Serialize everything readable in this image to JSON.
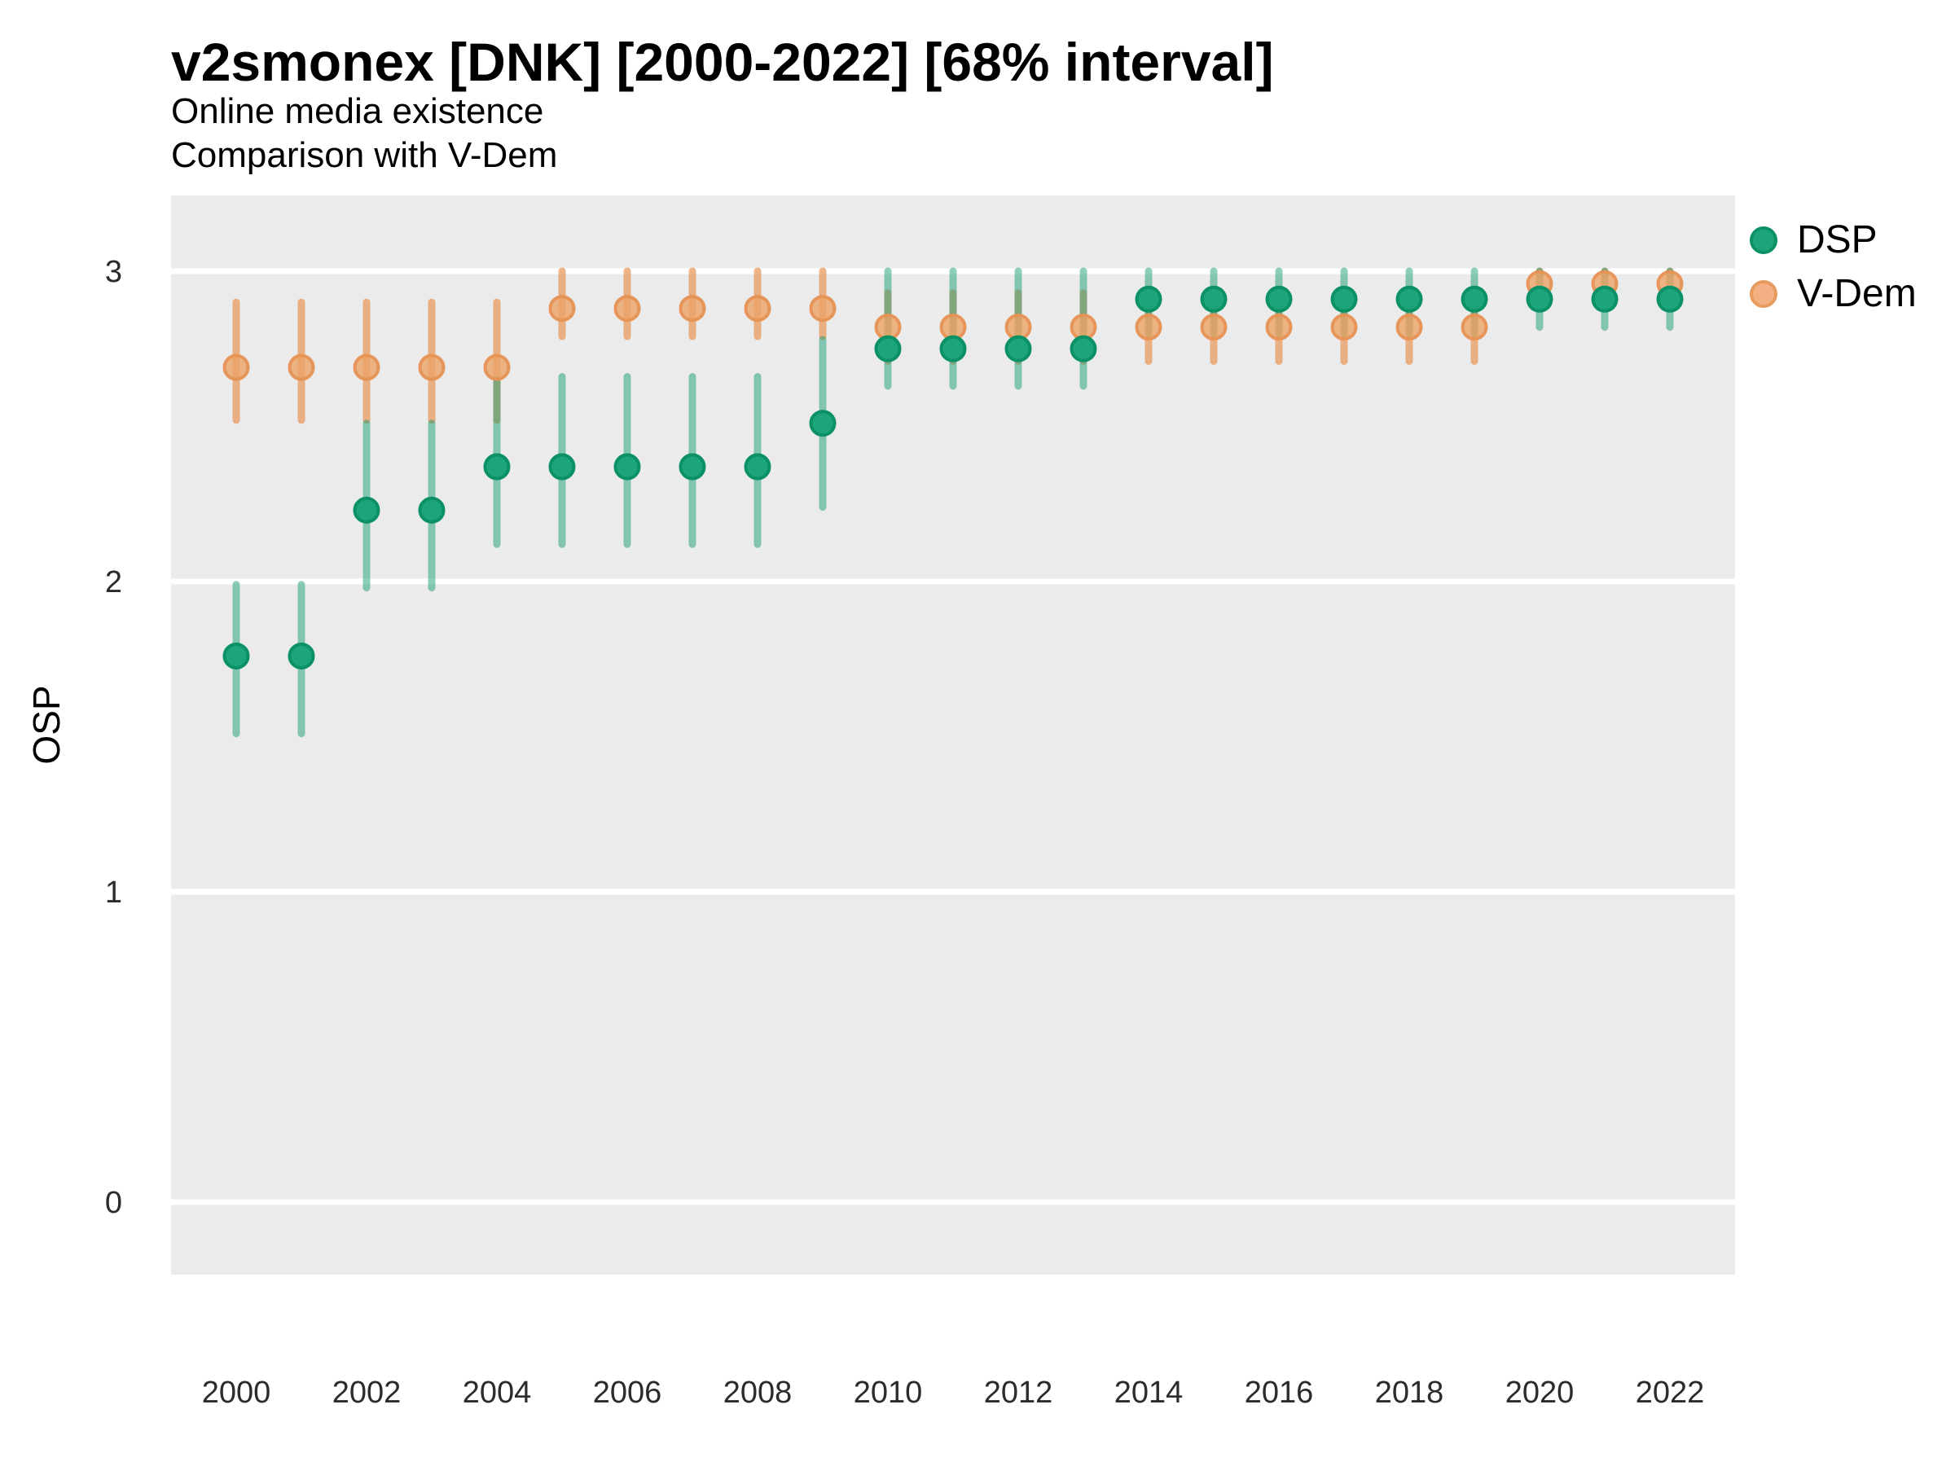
{
  "header": {
    "title": "v2smonex [DNK] [2000-2022] [68% interval]",
    "subtitle1": "Online media existence",
    "subtitle2": "Comparison with V-Dem"
  },
  "axes": {
    "y_label": "OSP",
    "y_ticks": [
      3,
      2,
      1,
      0
    ],
    "x_ticks": [
      2000,
      2002,
      2004,
      2006,
      2008,
      2010,
      2012,
      2014,
      2016,
      2018,
      2020,
      2022
    ]
  },
  "legend": {
    "items": [
      {
        "label": "DSP",
        "color": "#1CA57C"
      },
      {
        "label": "V-Dem",
        "color": "#F2B083"
      }
    ]
  },
  "colors": {
    "panel_bg": "#EBEBEB",
    "gridline": "#FFFFFF",
    "dsp_point_fill": "#1CA57C",
    "dsp_point_stroke": "#0C9166",
    "dsp_bar": "rgba(27,158,119,0.5)",
    "vdem_point_fill": "rgba(236,164,104,0.8)",
    "vdem_point_stroke": "rgba(230,146,84,0.95)",
    "vdem_bar": "rgba(231,149,88,0.72)",
    "tick_text": "#2b2b2b"
  },
  "chart_data": {
    "type": "scatter",
    "title": "v2smonex [DNK] [2000-2022] [68% interval]",
    "subtitle": [
      "Online media existence",
      "Comparison with V-Dem"
    ],
    "xlabel": "",
    "ylabel": "OSP",
    "interval": "68%",
    "grid": "major horizontal white gridlines on gray panel",
    "legend_position": "right",
    "ylim_panel": [
      -0.23,
      3.24
    ],
    "xlim_panel": [
      1999,
      2023
    ],
    "x": [
      2000,
      2001,
      2002,
      2003,
      2004,
      2005,
      2006,
      2007,
      2008,
      2009,
      2010,
      2011,
      2012,
      2013,
      2014,
      2015,
      2016,
      2017,
      2018,
      2019,
      2020,
      2021,
      2022
    ],
    "series": [
      {
        "name": "DSP",
        "values": [
          1.76,
          1.76,
          2.23,
          2.23,
          2.37,
          2.37,
          2.37,
          2.37,
          2.37,
          2.51,
          2.75,
          2.75,
          2.75,
          2.75,
          2.91,
          2.91,
          2.91,
          2.91,
          2.91,
          2.91,
          2.91,
          2.91,
          2.91
        ],
        "lo": [
          1.51,
          1.51,
          1.98,
          1.98,
          2.12,
          2.12,
          2.12,
          2.12,
          2.12,
          2.24,
          2.63,
          2.63,
          2.63,
          2.63,
          2.8,
          2.8,
          2.8,
          2.8,
          2.8,
          2.8,
          2.82,
          2.82,
          2.82
        ],
        "hi": [
          1.99,
          1.99,
          2.51,
          2.51,
          2.65,
          2.66,
          2.66,
          2.66,
          2.66,
          2.78,
          3.0,
          3.0,
          3.0,
          3.0,
          3.0,
          3.0,
          3.0,
          3.0,
          3.0,
          3.0,
          3.0,
          3.0,
          3.0
        ]
      },
      {
        "name": "V-Dem",
        "values": [
          2.69,
          2.69,
          2.69,
          2.69,
          2.69,
          2.88,
          2.88,
          2.88,
          2.88,
          2.88,
          2.82,
          2.82,
          2.82,
          2.82,
          2.82,
          2.82,
          2.82,
          2.82,
          2.82,
          2.82,
          2.96,
          2.96,
          2.96
        ],
        "lo": [
          2.52,
          2.52,
          2.52,
          2.52,
          2.52,
          2.79,
          2.79,
          2.79,
          2.79,
          2.79,
          2.71,
          2.71,
          2.71,
          2.71,
          2.71,
          2.71,
          2.71,
          2.71,
          2.71,
          2.71,
          2.88,
          2.88,
          2.88
        ],
        "hi": [
          2.9,
          2.9,
          2.9,
          2.9,
          2.9,
          3.0,
          3.0,
          3.0,
          3.0,
          3.0,
          2.93,
          2.93,
          2.93,
          2.93,
          2.93,
          2.93,
          2.93,
          2.93,
          2.93,
          2.93,
          3.0,
          3.0,
          3.0
        ]
      }
    ]
  }
}
